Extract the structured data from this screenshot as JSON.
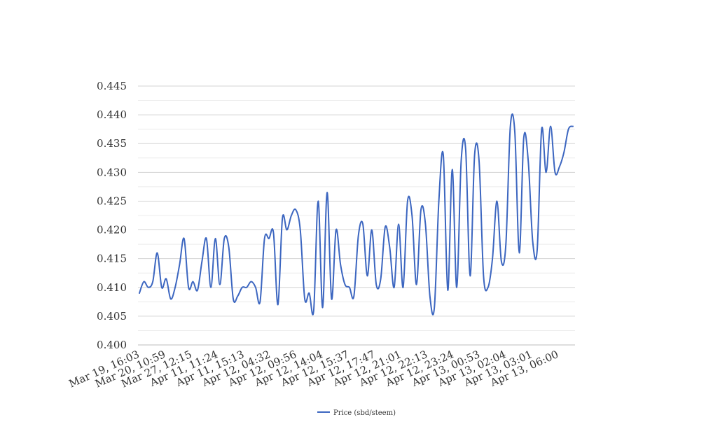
{
  "chart_data": {
    "type": "line",
    "title": "",
    "xlabel": "",
    "ylabel": "",
    "ylim": [
      0.4,
      0.445
    ],
    "y_ticks": [
      "0.400",
      "0.405",
      "0.410",
      "0.415",
      "0.420",
      "0.425",
      "0.430",
      "0.435",
      "0.440",
      "0.445"
    ],
    "y_tick_values": [
      0.4,
      0.405,
      0.41,
      0.415,
      0.42,
      0.425,
      0.43,
      0.435,
      0.44,
      0.445
    ],
    "x_tick_labels": [
      "Mar 19, 16:03",
      "Mar 20, 10:59",
      "Mar 27, 12:15",
      "Apr 11, 11:24",
      "Apr 11, 15:13",
      "Apr 12, 04:32",
      "Apr 12, 09:56",
      "Apr 12, 14:04",
      "Apr 12, 15:37",
      "Apr 12, 17:47",
      "Apr 12, 21:01",
      "Apr 12, 22:13",
      "Apr 12, 23:24",
      "Apr 13, 00:53",
      "Apr 13, 02:04",
      "Apr 13, 03:01",
      "Apr 13, 06:00"
    ],
    "grid": true,
    "legend_position": "bottom",
    "series": [
      {
        "name": "Price (sbd/steem)",
        "color": "#3c66c0",
        "values": [
          0.409,
          0.411,
          0.41,
          0.411,
          0.416,
          0.41,
          0.4115,
          0.408,
          0.41,
          0.414,
          0.4185,
          0.41,
          0.411,
          0.4095,
          0.4145,
          0.4185,
          0.41,
          0.4185,
          0.4105,
          0.4185,
          0.417,
          0.408,
          0.4085,
          0.41,
          0.41,
          0.411,
          0.41,
          0.4075,
          0.4185,
          0.4185,
          0.4195,
          0.407,
          0.422,
          0.42,
          0.4225,
          0.4235,
          0.42,
          0.408,
          0.409,
          0.406,
          0.425,
          0.4065,
          0.4265,
          0.408,
          0.42,
          0.414,
          0.4105,
          0.41,
          0.4085,
          0.419,
          0.421,
          0.412,
          0.42,
          0.4105,
          0.4115,
          0.4205,
          0.417,
          0.41,
          0.421,
          0.41,
          0.425,
          0.4225,
          0.4105,
          0.4235,
          0.421,
          0.4085,
          0.4065,
          0.425,
          0.433,
          0.4095,
          0.4305,
          0.41,
          0.432,
          0.434,
          0.412,
          0.433,
          0.432,
          0.412,
          0.41,
          0.415,
          0.425,
          0.4145,
          0.4175,
          0.438,
          0.437,
          0.416,
          0.436,
          0.432,
          0.418,
          0.4165,
          0.4375,
          0.43,
          0.438,
          0.43,
          0.431,
          0.4335,
          0.4375,
          0.438
        ]
      }
    ]
  }
}
